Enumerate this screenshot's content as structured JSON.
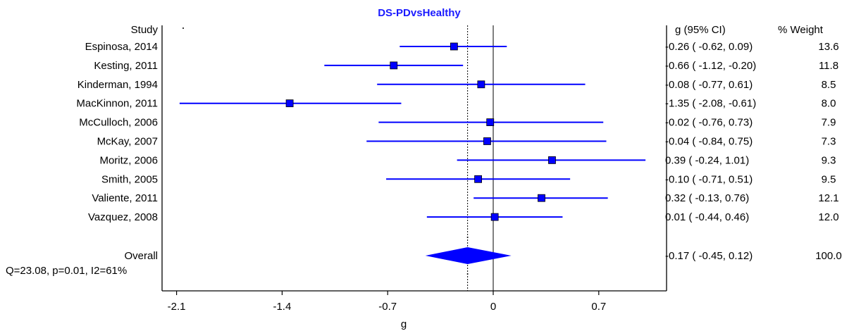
{
  "chart_data": {
    "type": "forest",
    "title": "DS-PDvsHealthy",
    "xlabel": "g",
    "xlim": [
      -2.2,
      1.2
    ],
    "xticks": [
      "-2.1",
      "-1.4",
      "-0.7",
      "0",
      "0.7"
    ],
    "xtick_values": [
      -2.1,
      -1.4,
      -0.7,
      0,
      0.7
    ],
    "reference_line": 0,
    "overall_line": -0.17,
    "headers": {
      "study": "Study",
      "ci": "g (95% CI)",
      "weight": "% Weight"
    },
    "studies": [
      {
        "name": "Espinosa, 2014",
        "g": -0.26,
        "lo": -0.62,
        "hi": 0.09,
        "ci_text": "-0.26 ( -0.62, 0.09)",
        "weight": "13.6"
      },
      {
        "name": "Kesting, 2011",
        "g": -0.66,
        "lo": -1.12,
        "hi": -0.2,
        "ci_text": "-0.66 ( -1.12, -0.20)",
        "weight": "11.8"
      },
      {
        "name": "Kinderman, 1994",
        "g": -0.08,
        "lo": -0.77,
        "hi": 0.61,
        "ci_text": "-0.08 ( -0.77, 0.61)",
        "weight": "8.5"
      },
      {
        "name": "MacKinnon, 2011",
        "g": -1.35,
        "lo": -2.08,
        "hi": -0.61,
        "ci_text": "-1.35 ( -2.08, -0.61)",
        "weight": "8.0"
      },
      {
        "name": "McCulloch, 2006",
        "g": -0.02,
        "lo": -0.76,
        "hi": 0.73,
        "ci_text": "-0.02 ( -0.76, 0.73)",
        "weight": "7.9"
      },
      {
        "name": "McKay, 2007",
        "g": -0.04,
        "lo": -0.84,
        "hi": 0.75,
        "ci_text": "-0.04 ( -0.84, 0.75)",
        "weight": "7.3"
      },
      {
        "name": "Moritz, 2006",
        "g": 0.39,
        "lo": -0.24,
        "hi": 1.01,
        "ci_text": "0.39 ( -0.24, 1.01)",
        "weight": "9.3"
      },
      {
        "name": "Smith, 2005",
        "g": -0.1,
        "lo": -0.71,
        "hi": 0.51,
        "ci_text": "-0.10 ( -0.71, 0.51)",
        "weight": "9.5"
      },
      {
        "name": "Valiente, 2011",
        "g": 0.32,
        "lo": -0.13,
        "hi": 0.76,
        "ci_text": "0.32 ( -0.13, 0.76)",
        "weight": "12.1"
      },
      {
        "name": "Vazquez, 2008",
        "g": 0.01,
        "lo": -0.44,
        "hi": 0.46,
        "ci_text": "0.01 ( -0.44, 0.46)",
        "weight": "12.0"
      }
    ],
    "overall": {
      "name": "Overall",
      "g": -0.17,
      "lo": -0.45,
      "hi": 0.12,
      "ci_text": "-0.17 ( -0.45, 0.12)",
      "weight": "100.0"
    },
    "heterogeneity": "Q=23.08, p=0.01, I2=61%",
    "colors": {
      "marker": "#0000ff",
      "line": "#0000ff",
      "title": "#1a1aff",
      "axis": "#000000"
    }
  }
}
